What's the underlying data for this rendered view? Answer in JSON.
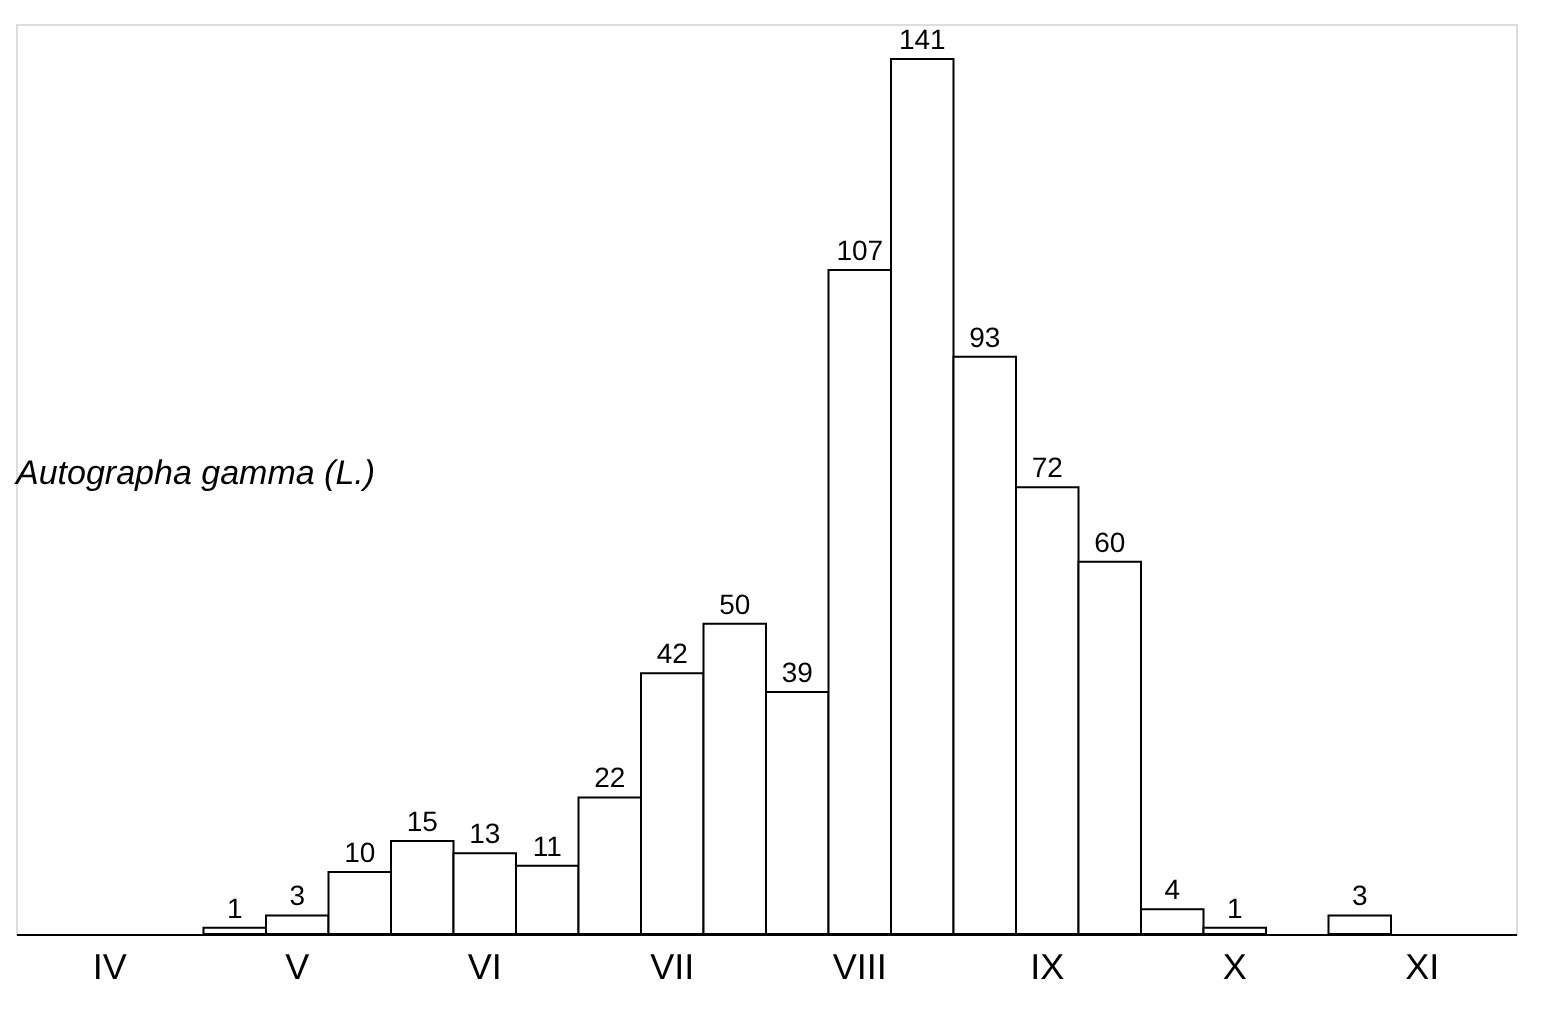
{
  "chart_data": {
    "type": "bar",
    "categories": [
      null,
      "IV",
      null,
      null,
      "V",
      null,
      null,
      "VI",
      null,
      null,
      "VII",
      null,
      null,
      "VIII",
      null,
      null,
      "IX",
      null,
      null,
      "X",
      null,
      null,
      "XI",
      null
    ],
    "values": [
      null,
      null,
      null,
      1,
      3,
      10,
      15,
      13,
      11,
      22,
      42,
      50,
      39,
      107,
      141,
      93,
      72,
      60,
      4,
      1,
      null,
      3,
      null,
      null
    ],
    "color": "#ffffff",
    "data_labels": true,
    "annotations": [
      "Autographa gamma (L.)"
    ]
  }
}
